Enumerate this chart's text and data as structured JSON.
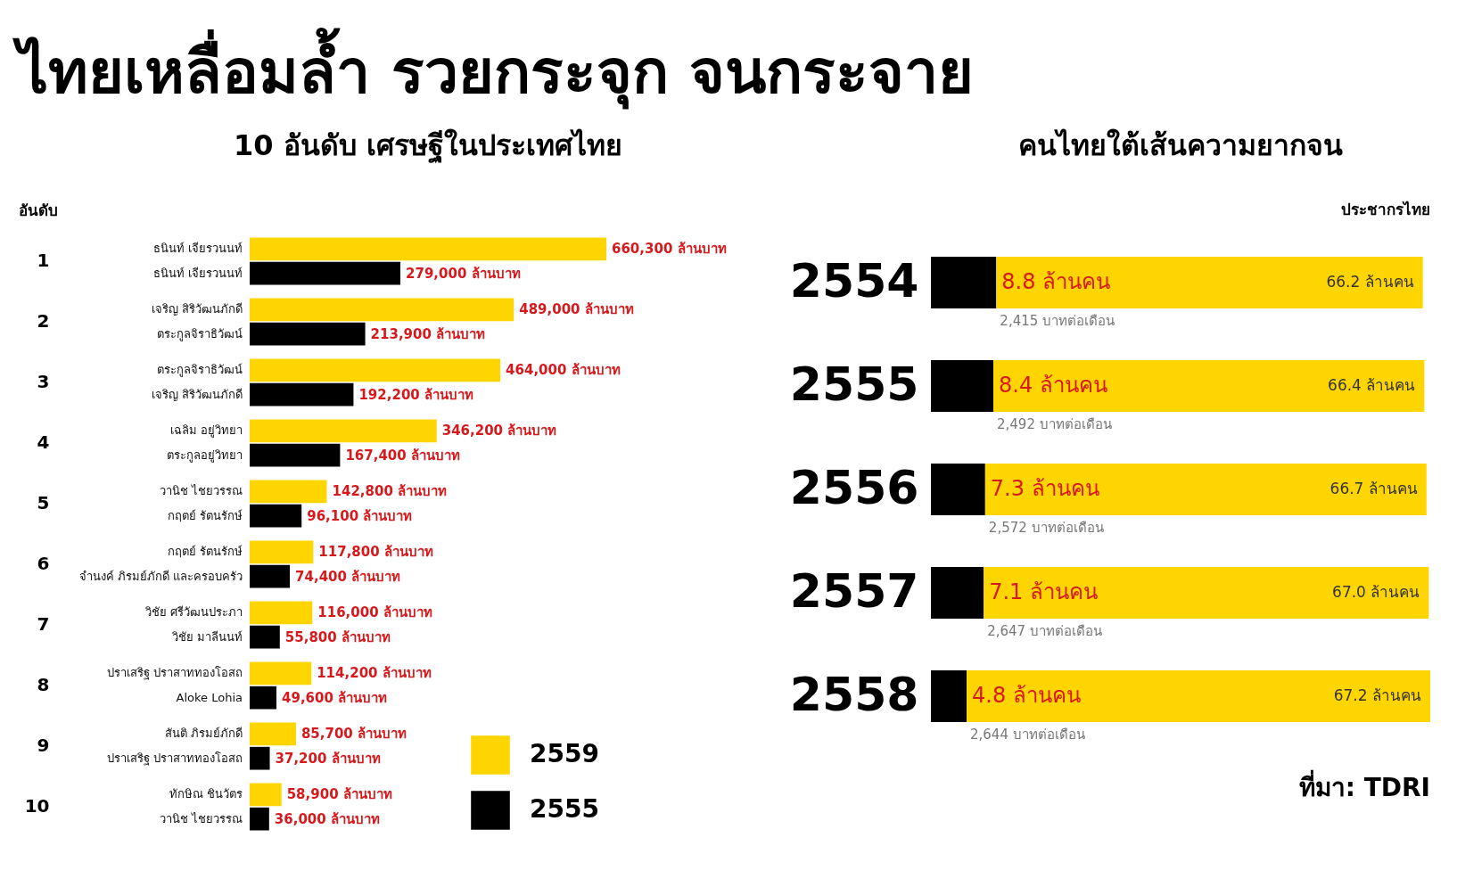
{
  "chart_data": [
    {
      "type": "bar",
      "title": "ไทยเหลื่อมล้ำ รวยกระจุก จนกระจาย",
      "subtitle": "10 อันดับ เศรษฐีในประเทศไทย",
      "ylabel": "อันดับ",
      "orientation": "horizontal",
      "legend": "bottom right",
      "categories": [
        "1",
        "2",
        "3",
        "4",
        "5",
        "6",
        "7",
        "8",
        "9",
        "10"
      ],
      "series": [
        {
          "name": "2559",
          "color": "#ffd500",
          "values": [
            660300,
            489000,
            464000,
            346200,
            142800,
            117800,
            116000,
            114200,
            85700,
            58900
          ],
          "value_labels": [
            "660,300 ล้านบาท",
            "489,000 ล้านบาท",
            "464,000 ล้านบาท",
            "346,200 ล้านบาท",
            "142,800 ล้านบาท",
            "117,800 ล้านบาท",
            "116,000 ล้านบาท",
            "114,200 ล้านบาท",
            "85,700 ล้านบาท",
            "58,900 ล้านบาท"
          ]
        },
        {
          "name": "2555",
          "color": "#000000",
          "values": [
            279000,
            213900,
            192200,
            167400,
            96100,
            74400,
            55800,
            49600,
            37200,
            36000
          ],
          "value_labels": [
            "279,000 ล้านบาท",
            "213,900 ล้านบาท",
            "192,200 ล้านบาท",
            "167,400 ล้านบาท",
            "96,100 ล้านบาท",
            "74,400 ล้านบาท",
            "55,800 ล้านบาท",
            "49,600 ล้านบาท",
            "37,200 ล้านบาท",
            "36,000 ล้านบาท"
          ]
        }
      ],
      "annotations": [
        {
          "text": "ธนินท์ เจียรวนนท์",
          "x": 0,
          "y": "1"
        },
        {
          "text": "ธนินท์ เจียรวนนท์",
          "x": 0,
          "y": "1"
        },
        {
          "text": "เจริญ สิริวัฒนภักดี",
          "x": 0,
          "y": "2"
        },
        {
          "text": "ตระกูลจิราธิวัฒน์",
          "x": 0,
          "y": "2"
        },
        {
          "text": "ตระกูลจิราธิวัฒน์",
          "x": 0,
          "y": "3"
        },
        {
          "text": "เจริญ สิริวัฒนภักดี",
          "x": 0,
          "y": "3"
        },
        {
          "text": "เฉลิม อยู่วิทยา",
          "x": 0,
          "y": "4"
        },
        {
          "text": "ตระกูลอยู่วิทยา",
          "x": 0,
          "y": "4"
        },
        {
          "text": "วานิช ไชยวรรณ",
          "x": 0,
          "y": "5"
        },
        {
          "text": "กฤตย์ รัตนรักษ์",
          "x": 0,
          "y": "5"
        },
        {
          "text": "กฤตย์ รัตนรักษ์",
          "x": 0,
          "y": "6"
        },
        {
          "text": "จำนงค์ ภิรมย์ภักดี และครอบครัว",
          "x": 0,
          "y": "6"
        },
        {
          "text": "วิชัย ศรีวัฒนประภา",
          "x": 0,
          "y": "7"
        },
        {
          "text": "วิชัย มาลีนนท์",
          "x": 0,
          "y": "7"
        },
        {
          "text": "ปราเสริฐ ปราสาททองโอสถ",
          "x": 0,
          "y": "8"
        },
        {
          "text": "Aloke Lohia",
          "x": 0,
          "y": "8"
        },
        {
          "text": "สันติ ภิรมย์ภักดี",
          "x": 0,
          "y": "9"
        },
        {
          "text": "ปราเสริฐ ปราสาททองโอสถ",
          "x": 0,
          "y": "9"
        },
        {
          "text": "ทักษิณ ชินวัตร",
          "x": 0,
          "y": "10"
        },
        {
          "text": "วานิช ไชยวรรณ",
          "x": 0,
          "y": "10"
        }
      ]
    },
    {
      "type": "bar",
      "title": "คนไทยใต้เส้นความยากจน",
      "orientation": "horizontal",
      "stacked": true,
      "categories": [
        "2554",
        "2555",
        "2556",
        "2557",
        "2558"
      ],
      "series": [
        {
          "color": "#000000",
          "values": [
            8.8,
            8.4,
            7.3,
            7.1,
            4.8
          ],
          "value_labels": [
            "8.8 ล้านคน",
            "8.4 ล้านคน",
            "7.3 ล้านคน",
            "7.1 ล้านคน",
            "4.8 ล้านคน"
          ]
        },
        {
          "color": "#ffd500",
          "values": [
            57.4,
            58.0,
            59.4,
            59.9,
            62.4
          ]
        }
      ],
      "totals": [
        "66.2 ล้านคน",
        "66.4 ล้านคน",
        "66.7 ล้านคน",
        "67.0 ล้านคน",
        "67.2 ล้านคน"
      ],
      "annotations": [
        "ประชากรไทย",
        {
          "text": "2,415 บาทต่อเดือน",
          "x": 8.8,
          "y": "2554"
        },
        {
          "text": "2,492 บาทต่อเดือน",
          "x": 8.4,
          "y": "2555"
        },
        {
          "text": "2,572 บาทต่อเดือน",
          "x": 7.3,
          "y": "2556"
        },
        {
          "text": "2,647 บาทต่อเดือน",
          "x": 7.1,
          "y": "2557"
        },
        {
          "text": "2,644 บาทต่อเดือน",
          "x": 4.8,
          "y": "2558"
        },
        "ที่มา: TDRI"
      ]
    }
  ]
}
